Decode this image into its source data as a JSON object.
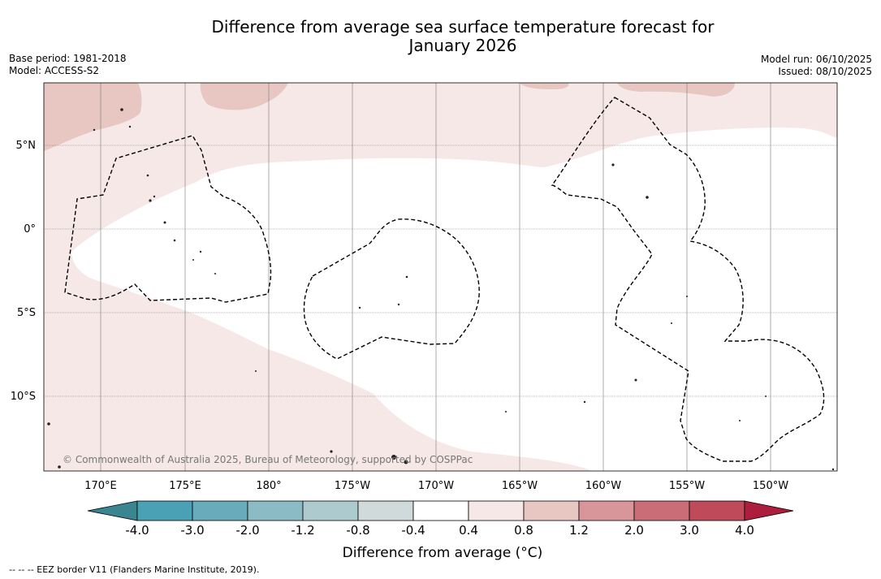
{
  "title_line1": "Difference from average sea surface temperature forecast for",
  "title_line2": "January 2026",
  "base_period": "Base period: 1981-2018",
  "model": "Model: ACCESS-S2",
  "model_run": "Model run: 06/10/2025",
  "issued": "Issued: 08/10/2025",
  "copyright": "© Commonwealth of Australia 2025, Bureau of Meteorology, supported by COSPPac",
  "lat_labels": [
    "5°N",
    "0°",
    "5°S",
    "10°S"
  ],
  "lon_labels": [
    "170°E",
    "175°E",
    "180°",
    "175°W",
    "170°W",
    "165°W",
    "160°W",
    "155°W",
    "150°W"
  ],
  "colorbar": {
    "title": "Difference from average (°C)",
    "tick_labels": [
      "-4.0",
      "-3.0",
      "-2.0",
      "-1.2",
      "-0.8",
      "-0.4",
      "0.4",
      "0.8",
      "1.2",
      "2.0",
      "3.0",
      "4.0"
    ],
    "colors": [
      "#4aa0b4",
      "#69abbb",
      "#8bbcc5",
      "#adcbcf",
      "#d1dada",
      "#ffffff",
      "#f5e8e6",
      "#e8c6c1",
      "#d8959a",
      "#ca6d77",
      "#bf4a59"
    ],
    "under_color": "#3a8590",
    "over_color": "#ad1e3c"
  },
  "legend_note": "--  --  -- EEZ border V11 (Flanders Marine Institute, 2019)."
}
